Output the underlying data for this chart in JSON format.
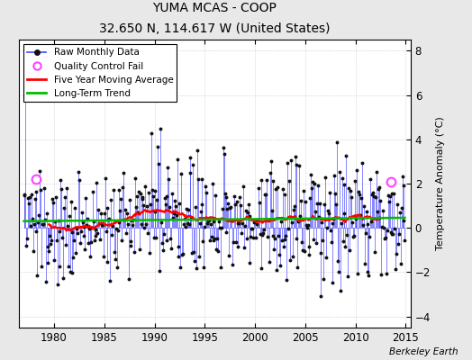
{
  "title": "YUMA MCAS - COOP",
  "subtitle": "32.650 N, 114.617 W (United States)",
  "ylabel": "Temperature Anomaly (°C)",
  "xlim": [
    1976.5,
    2015.5
  ],
  "ylim": [
    -4.5,
    8.5
  ],
  "yticks": [
    -4,
    -2,
    0,
    2,
    4,
    6,
    8
  ],
  "xticks": [
    1980,
    1985,
    1990,
    1995,
    2000,
    2005,
    2010,
    2015
  ],
  "line_color": "#4444ff",
  "moving_avg_color": "#ff0000",
  "trend_color": "#00bb00",
  "qc_fail_color": "#ff44ff",
  "marker_color": "#111111",
  "plot_bg": "#ffffff",
  "fig_bg": "#e8e8e8",
  "watermark": "Berkeley Earth",
  "seed": 137
}
